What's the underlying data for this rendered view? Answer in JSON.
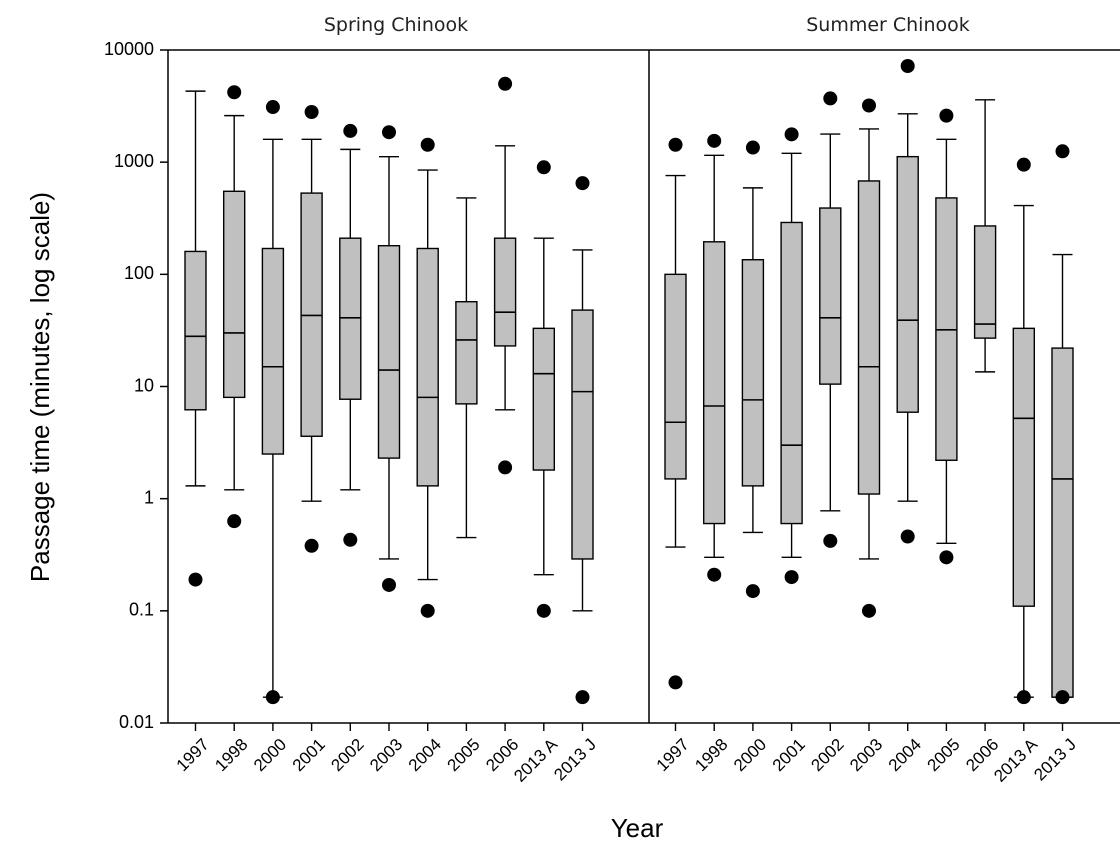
{
  "chart_data": {
    "type": "box",
    "ylabel": "Passage time (minutes, log scale)",
    "xlabel": "Year",
    "yscale": "log",
    "ylim": [
      0.01,
      10000
    ],
    "yticks": [
      "0.01",
      "0.1",
      "1",
      "10",
      "100",
      "1000",
      "10000"
    ],
    "categories": [
      "1997",
      "1998",
      "2000",
      "2001",
      "2002",
      "2003",
      "2004",
      "2005",
      "2006",
      "2013 A",
      "2013 J"
    ],
    "panels": [
      {
        "title": "Spring Chinook",
        "boxes": [
          {
            "q1": 6.2,
            "median": 28,
            "q3": 160,
            "whisker_low": 1.3,
            "whisker_high": 4300,
            "outliers": [
              0.19
            ]
          },
          {
            "q1": 8.0,
            "median": 30,
            "q3": 550,
            "whisker_low": 1.2,
            "whisker_high": 2600,
            "outliers": [
              4200,
              0.63
            ]
          },
          {
            "q1": 2.5,
            "median": 15,
            "q3": 170,
            "whisker_low": 0.017,
            "whisker_high": 1600,
            "outliers": [
              3100,
              0.017
            ]
          },
          {
            "q1": 3.6,
            "median": 43,
            "q3": 530,
            "whisker_low": 0.95,
            "whisker_high": 1600,
            "outliers": [
              2800,
              0.38
            ]
          },
          {
            "q1": 7.7,
            "median": 41,
            "q3": 210,
            "whisker_low": 1.2,
            "whisker_high": 1300,
            "outliers": [
              1900,
              0.43
            ]
          },
          {
            "q1": 2.3,
            "median": 14,
            "q3": 180,
            "whisker_low": 0.29,
            "whisker_high": 1120,
            "outliers": [
              1850,
              0.17
            ]
          },
          {
            "q1": 1.3,
            "median": 8,
            "q3": 170,
            "whisker_low": 0.19,
            "whisker_high": 850,
            "outliers": [
              1430,
              0.1
            ]
          },
          {
            "q1": 7.0,
            "median": 26,
            "q3": 57,
            "whisker_low": 0.45,
            "whisker_high": 480,
            "outliers": []
          },
          {
            "q1": 23,
            "median": 46,
            "q3": 210,
            "whisker_low": 6.2,
            "whisker_high": 1400,
            "outliers": [
              5000,
              1.9
            ]
          },
          {
            "q1": 1.8,
            "median": 13,
            "q3": 33,
            "whisker_low": 0.21,
            "whisker_high": 210,
            "outliers": [
              900,
              0.1
            ]
          },
          {
            "q1": 0.29,
            "median": 9,
            "q3": 48,
            "whisker_low": 0.1,
            "whisker_high": 165,
            "outliers": [
              650,
              0.017
            ]
          }
        ]
      },
      {
        "title": "Summer Chinook",
        "boxes": [
          {
            "q1": 1.5,
            "median": 4.8,
            "q3": 100,
            "whisker_low": 0.37,
            "whisker_high": 760,
            "outliers": [
              1430,
              0.023
            ]
          },
          {
            "q1": 0.6,
            "median": 6.7,
            "q3": 195,
            "whisker_low": 0.3,
            "whisker_high": 1150,
            "outliers": [
              1550,
              0.21
            ]
          },
          {
            "q1": 1.3,
            "median": 7.6,
            "q3": 135,
            "whisker_low": 0.5,
            "whisker_high": 590,
            "outliers": [
              1350,
              0.15
            ]
          },
          {
            "q1": 0.6,
            "median": 3.0,
            "q3": 290,
            "whisker_low": 0.3,
            "whisker_high": 1200,
            "outliers": [
              1770,
              0.2
            ]
          },
          {
            "q1": 10.5,
            "median": 41,
            "q3": 390,
            "whisker_low": 0.78,
            "whisker_high": 1780,
            "outliers": [
              3700,
              0.42
            ]
          },
          {
            "q1": 1.1,
            "median": 15,
            "q3": 680,
            "whisker_low": 0.29,
            "whisker_high": 1980,
            "outliers": [
              3200,
              0.1
            ]
          },
          {
            "q1": 5.9,
            "median": 39,
            "q3": 1120,
            "whisker_low": 0.95,
            "whisker_high": 2700,
            "outliers": [
              7200,
              0.46
            ]
          },
          {
            "q1": 2.2,
            "median": 32,
            "q3": 480,
            "whisker_low": 0.4,
            "whisker_high": 1600,
            "outliers": [
              2600,
              0.3
            ]
          },
          {
            "q1": 27,
            "median": 36,
            "q3": 270,
            "whisker_low": 13.5,
            "whisker_high": 3600,
            "outliers": []
          },
          {
            "q1": 0.11,
            "median": 5.2,
            "q3": 33,
            "whisker_low": 0.017,
            "whisker_high": 410,
            "outliers": [
              950,
              0.017
            ]
          },
          {
            "q1": 0.017,
            "median": 1.5,
            "q3": 22,
            "whisker_low": 0.017,
            "whisker_high": 150,
            "outliers": [
              1250,
              0.017
            ]
          }
        ]
      }
    ]
  }
}
